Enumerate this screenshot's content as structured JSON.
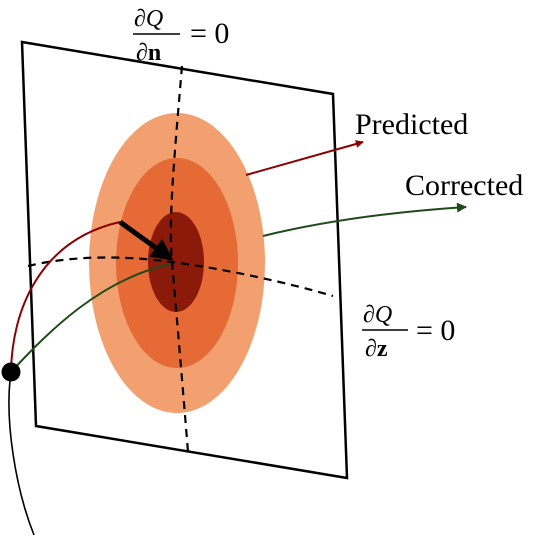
{
  "labels": {
    "predicted": "Predicted",
    "corrected": "Corrected"
  },
  "equations": {
    "normal": {
      "numerator_d": "∂",
      "numerator_var": "Q",
      "denominator_d": "∂",
      "denominator_var": "n",
      "rhs": "= 0"
    },
    "tangent": {
      "numerator_d": "∂",
      "numerator_var": "Q",
      "denominator_d": "∂",
      "denominator_var": "z",
      "rhs": "= 0"
    }
  },
  "colors": {
    "outer_ellipse": "#f2a070",
    "middle_ellipse": "#e56a35",
    "inner_ellipse": "#8b1a0a",
    "predicted_path": "#8b0000",
    "corrected_path": "#1f4a1a",
    "frame": "#000000"
  }
}
